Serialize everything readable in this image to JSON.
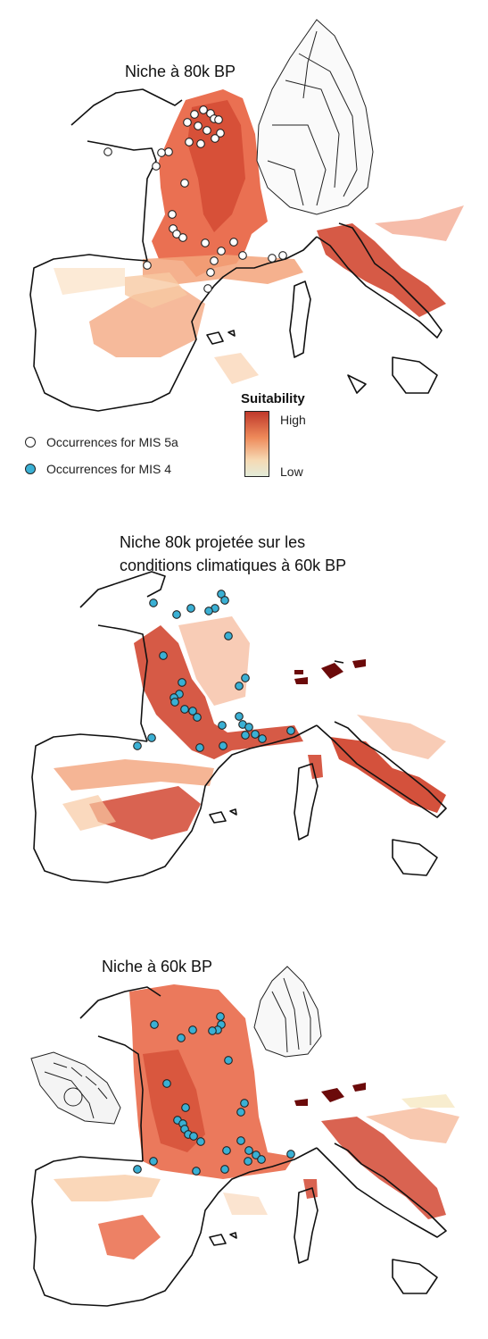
{
  "panels": [
    {
      "title_lines": [
        "Niche à 80k BP"
      ],
      "marker": "white",
      "points": [
        [
          218,
          128
        ],
        [
          228,
          123
        ],
        [
          236,
          127
        ],
        [
          240,
          133
        ],
        [
          245,
          134
        ],
        [
          210,
          137
        ],
        [
          222,
          141
        ],
        [
          232,
          146
        ],
        [
          247,
          149
        ],
        [
          241,
          155
        ],
        [
          212,
          159
        ],
        [
          225,
          161
        ],
        [
          189,
          170
        ],
        [
          175,
          186
        ],
        [
          121,
          170
        ],
        [
          181,
          171
        ],
        [
          207,
          205
        ],
        [
          193,
          240
        ],
        [
          194,
          256
        ],
        [
          198,
          262
        ],
        [
          205,
          266
        ],
        [
          230,
          272
        ],
        [
          262,
          271
        ],
        [
          248,
          281
        ],
        [
          272,
          286
        ],
        [
          240,
          292
        ],
        [
          165,
          297
        ],
        [
          236,
          305
        ],
        [
          233,
          323
        ],
        [
          305,
          289
        ],
        [
          317,
          286
        ]
      ]
    },
    {
      "title_lines": [
        "Niche 80k projetée sur les",
        "conditions climatiques à 60k BP"
      ],
      "marker": "blue",
      "points": [
        [
          172,
          675
        ],
        [
          248,
          665
        ],
        [
          252,
          672
        ],
        [
          241,
          681
        ],
        [
          234,
          684
        ],
        [
          214,
          681
        ],
        [
          198,
          688
        ],
        [
          256,
          712
        ],
        [
          183,
          734
        ],
        [
          204,
          764
        ],
        [
          275,
          759
        ],
        [
          268,
          768
        ],
        [
          201,
          777
        ],
        [
          195,
          781
        ],
        [
          196,
          786
        ],
        [
          207,
          794
        ],
        [
          216,
          796
        ],
        [
          221,
          803
        ],
        [
          268,
          802
        ],
        [
          249,
          812
        ],
        [
          272,
          811
        ],
        [
          279,
          814
        ],
        [
          275,
          823
        ],
        [
          286,
          822
        ],
        [
          294,
          827
        ],
        [
          326,
          818
        ],
        [
          170,
          826
        ],
        [
          154,
          835
        ],
        [
          224,
          837
        ],
        [
          250,
          835
        ]
      ]
    },
    {
      "title_lines": [
        "Niche à 60k BP"
      ],
      "marker": "blue",
      "points": [
        [
          247,
          1138
        ],
        [
          248,
          1147
        ],
        [
          244,
          1153
        ],
        [
          238,
          1154
        ],
        [
          216,
          1153
        ],
        [
          203,
          1162
        ],
        [
          173,
          1147
        ],
        [
          256,
          1187
        ],
        [
          187,
          1213
        ],
        [
          208,
          1240
        ],
        [
          274,
          1235
        ],
        [
          270,
          1245
        ],
        [
          199,
          1254
        ],
        [
          205,
          1258
        ],
        [
          207,
          1264
        ],
        [
          211,
          1270
        ],
        [
          217,
          1272
        ],
        [
          225,
          1278
        ],
        [
          270,
          1277
        ],
        [
          254,
          1288
        ],
        [
          279,
          1288
        ],
        [
          287,
          1293
        ],
        [
          278,
          1300
        ],
        [
          293,
          1298
        ],
        [
          326,
          1292
        ],
        [
          172,
          1300
        ],
        [
          154,
          1309
        ],
        [
          220,
          1311
        ],
        [
          252,
          1309
        ]
      ]
    }
  ],
  "legend": {
    "occ_5a_label": "Occurrences for MIS 5a",
    "occ_4_label": "Occurrences for MIS 4",
    "suitability_title": "Suitability",
    "high_label": "High",
    "low_label": "Low"
  },
  "colors": {
    "marker_white": "#ffffff",
    "marker_blue": "#3ab0d4",
    "marker_stroke": "#222222",
    "suit_high": "#c0392b",
    "suit_mid": "#ee8a5a",
    "suit_low": "#f6d9b3",
    "suit_lowest": "#e4ecd9",
    "dark_patch": "#6b0a0a",
    "coastline": "#111111"
  }
}
